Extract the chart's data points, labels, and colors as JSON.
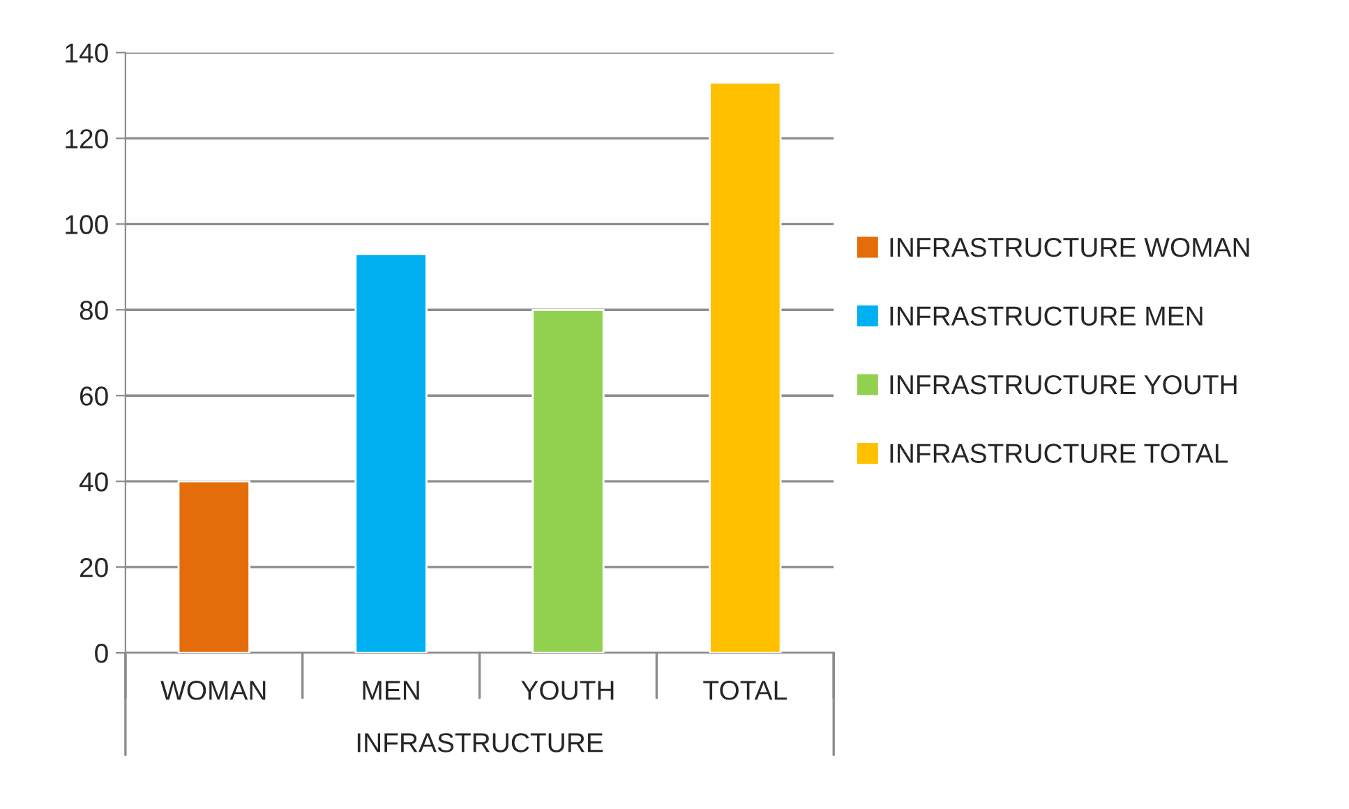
{
  "chart_data": {
    "type": "bar",
    "categories": [
      "WOMAN",
      "MEN",
      "YOUTH",
      "TOTAL"
    ],
    "xlabel": "INFRASTRUCTURE",
    "series": [
      {
        "name": "INFRASTRUCTURE WOMAN",
        "color": "#e46c0a",
        "values": [
          40,
          null,
          null,
          null
        ]
      },
      {
        "name": "INFRASTRUCTURE MEN",
        "color": "#00b0f0",
        "values": [
          null,
          93,
          null,
          null
        ]
      },
      {
        "name": "INFRASTRUCTURE YOUTH",
        "color": "#92d050",
        "values": [
          null,
          null,
          80,
          null
        ]
      },
      {
        "name": "INFRASTRUCTURE TOTAL",
        "color": "#ffc000",
        "values": [
          null,
          null,
          null,
          133
        ]
      }
    ],
    "ylim": [
      0,
      140
    ],
    "yticks": [
      0,
      20,
      40,
      60,
      80,
      100,
      120,
      140
    ],
    "grid": "y",
    "legend": "right"
  }
}
